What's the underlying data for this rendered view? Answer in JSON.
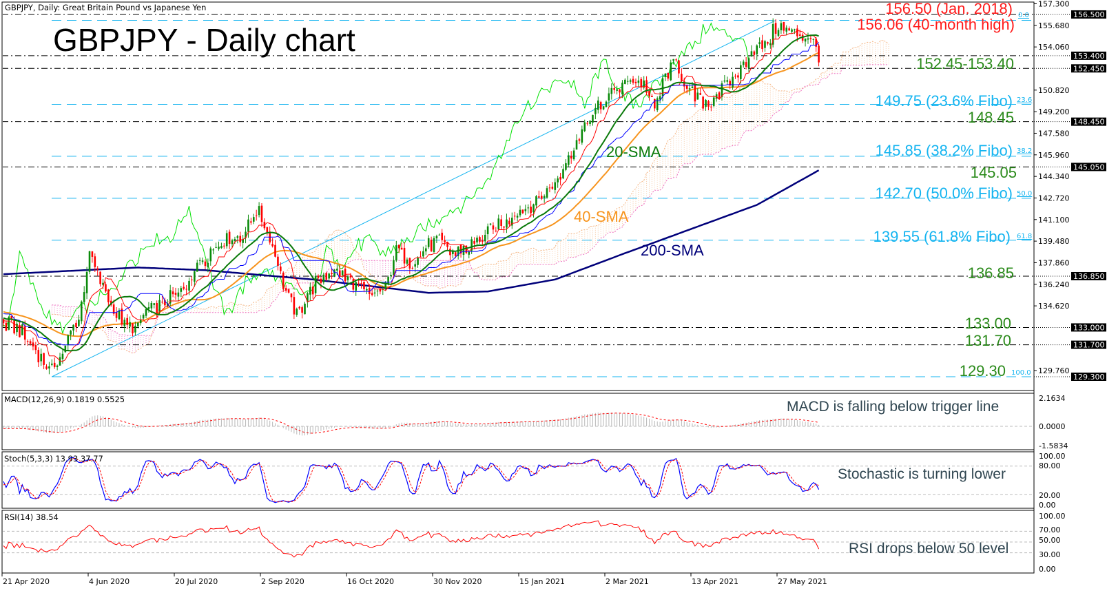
{
  "header": {
    "symbol_line": "GBPJPY, Daily:  Great Britain Pound vs Japanese Yen"
  },
  "title": "GBPJPY - Daily chart",
  "chart_data": {
    "type": "candlestick",
    "title": "GBPJPY - Daily chart",
    "xlabel": "",
    "ylabel": "",
    "ylim": [
      129.3,
      157.3
    ],
    "price_ticks": [
      "157.300",
      "155.680",
      "154.060",
      "150.820",
      "149.200",
      "147.580",
      "145.960",
      "144.340",
      "142.720",
      "141.100",
      "139.480",
      "137.860",
      "136.240",
      "134.620",
      "129.760"
    ],
    "highlighted_prices": [
      "156.500",
      "153.400",
      "152.450",
      "148.450",
      "145.050",
      "136.850",
      "133.000",
      "131.700",
      "129.300"
    ],
    "date_ticks": [
      "21 Apr 2020",
      "4 Jun 2020",
      "20 Jul 2020",
      "2 Sep 2020",
      "16 Oct 2020",
      "30 Nov 2020",
      "15 Jan 2021",
      "2 Mar 2021",
      "13 Apr 2021",
      "27 May 2021"
    ],
    "bars_per_date_tick": 32,
    "close_path": [
      [
        0,
        133.3
      ],
      [
        6,
        132.8
      ],
      [
        12,
        131.2
      ],
      [
        18,
        129.6
      ],
      [
        23,
        131.7
      ],
      [
        28,
        133.8
      ],
      [
        32,
        138.5
      ],
      [
        37,
        135.9
      ],
      [
        44,
        133.3
      ],
      [
        49,
        132.8
      ],
      [
        54,
        134.3
      ],
      [
        60,
        134.8
      ],
      [
        67,
        135.9
      ],
      [
        73,
        137.9
      ],
      [
        81,
        139.5
      ],
      [
        88,
        139.7
      ],
      [
        94,
        141.8
      ],
      [
        99,
        140.0
      ],
      [
        104,
        136.4
      ],
      [
        109,
        133.8
      ],
      [
        114,
        135.9
      ],
      [
        122,
        137.4
      ],
      [
        129,
        136.4
      ],
      [
        137,
        135.3
      ],
      [
        142,
        136.1
      ],
      [
        146,
        139.0
      ],
      [
        152,
        137.9
      ],
      [
        160,
        139.5
      ],
      [
        168,
        138.5
      ],
      [
        175,
        139.2
      ],
      [
        183,
        140.5
      ],
      [
        191,
        141.6
      ],
      [
        198,
        142.6
      ],
      [
        206,
        144.1
      ],
      [
        212,
        146.7
      ],
      [
        218,
        148.8
      ],
      [
        223,
        149.8
      ],
      [
        228,
        150.9
      ],
      [
        233,
        151.6
      ],
      [
        238,
        151.4
      ],
      [
        242,
        149.3
      ],
      [
        246,
        151.9
      ],
      [
        250,
        153.0
      ],
      [
        254,
        150.9
      ],
      [
        257,
        150.3
      ],
      [
        262,
        149.8
      ],
      [
        268,
        151.1
      ],
      [
        274,
        152.4
      ],
      [
        278,
        154.0
      ],
      [
        283,
        154.2
      ],
      [
        287,
        155.5
      ],
      [
        292,
        155.3
      ],
      [
        297,
        155.0
      ],
      [
        301,
        154.7
      ],
      [
        303,
        152.9
      ]
    ],
    "sma200_path": [
      [
        0,
        137.0
      ],
      [
        50,
        137.5
      ],
      [
        75,
        137.3
      ],
      [
        115,
        136.6
      ],
      [
        158,
        135.6
      ],
      [
        180,
        135.7
      ],
      [
        205,
        136.6
      ],
      [
        230,
        138.5
      ],
      [
        257,
        140.5
      ],
      [
        280,
        142.2
      ],
      [
        303,
        144.8
      ]
    ],
    "series": [
      {
        "name": "20-SMA",
        "color": "#0a7a0a"
      },
      {
        "name": "40-SMA",
        "color": "#f7941d"
      },
      {
        "name": "200-SMA",
        "color": "#00007a"
      },
      {
        "name": "Tenkan",
        "color": "#ff0000"
      },
      {
        "name": "Kijun",
        "color": "#0000ff"
      },
      {
        "name": "Chikou",
        "color": "#00e000"
      }
    ],
    "trendline": {
      "from": [
        18,
        129.3
      ],
      "to": [
        287,
        156.06
      ]
    },
    "levels": [
      {
        "price": 156.5,
        "label": "156.50 (Jan. 2018)"
      },
      {
        "price": 153.4,
        "label": "152.45-153.40"
      },
      {
        "price": 152.45
      },
      {
        "price": 148.45,
        "label": "148.45"
      },
      {
        "price": 145.05,
        "label": "145.05"
      },
      {
        "price": 136.85,
        "label": "136.85"
      },
      {
        "price": 133.0,
        "label": "133.00"
      },
      {
        "price": 131.7,
        "label": "131.70"
      }
    ],
    "fibo": [
      {
        "price": 156.06,
        "pct": "0.0",
        "label": "156.06 (40-month high)"
      },
      {
        "price": 149.75,
        "pct": "23.6",
        "label": "149.75 (23.6% Fibo)"
      },
      {
        "price": 145.85,
        "pct": "38.2",
        "label": "145.85 (38.2% Fibo)"
      },
      {
        "price": 142.7,
        "pct": "50.0",
        "label": "142.70 (50.0% Fibo)"
      },
      {
        "price": 139.55,
        "pct": "61.8",
        "label": "139.55 (61.8% Fibo)"
      },
      {
        "price": 129.3,
        "pct": "100.0",
        "label": "129.30"
      }
    ],
    "ma_labels": {
      "sma20": "20-SMA",
      "sma40": "40-SMA",
      "sma200": "200-SMA"
    },
    "indicators": {
      "macd": {
        "label": "MACD(12,26,9) 0.1819 0.5525",
        "ylim": [
          -1.5834,
          2.1634
        ],
        "ticks": [
          "2.1634",
          "0.0000",
          "-1.5834"
        ],
        "note": "MACD is falling below trigger line"
      },
      "stoch": {
        "label": "Stoch(5,3,3) 13.93 37.77",
        "ylim": [
          0,
          100
        ],
        "levels": [
          80,
          20
        ],
        "ticks": [
          "100.00",
          "80.00",
          "20.00",
          "0.00"
        ],
        "note": "Stochastic is turning lower"
      },
      "rsi": {
        "label": "RSI(14) 38.54",
        "ylim": [
          0,
          100
        ],
        "levels": [
          70,
          50,
          30
        ],
        "ticks": [
          "100.00",
          "70.00",
          "50.00",
          "30.00",
          "0.00"
        ],
        "note": "RSI drops below 50 level"
      }
    }
  }
}
